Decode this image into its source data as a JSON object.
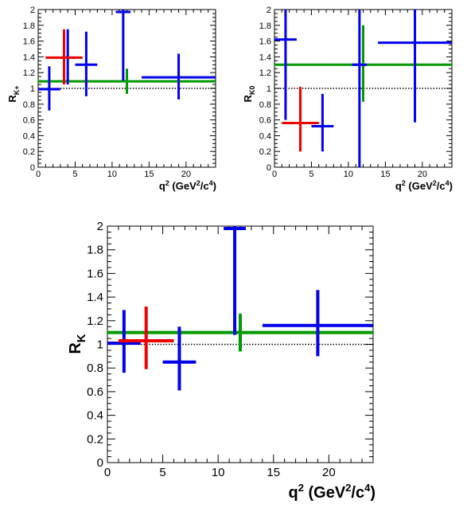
{
  "chart_data": [
    {
      "id": "rkplus",
      "type": "errorbar",
      "xlabel": "q² (GeV²/c⁴)",
      "xlabel_parts": {
        "q": "q",
        "q_sup": "2",
        "a": " (GeV",
        "a_sup": "2",
        "b": "/c",
        "b_sup": "4",
        "c": ")"
      },
      "ylabel_parts": {
        "main": "R",
        "sub": "K+"
      },
      "xlim": [
        0,
        24
      ],
      "ylim": [
        0,
        2
      ],
      "xticks": [
        0,
        5,
        10,
        15,
        20
      ],
      "yticks": [
        "0",
        "0.2",
        "0.4",
        "0.6",
        "0.8",
        "1",
        "1.2",
        "1.4",
        "1.6",
        "1.8",
        "2"
      ],
      "reference_line": {
        "y": 1.0,
        "style": "dotted"
      },
      "series": [
        {
          "color": "#0000ee",
          "points": [
            {
              "x": 1.5,
              "xerr": 1.5,
              "y": 0.99,
              "ylo": 0.72,
              "yhi": 1.28
            },
            {
              "x": 4.0,
              "xerr": 1.0,
              "y": 1.39,
              "ylo": 1.05,
              "yhi": 1.75
            },
            {
              "x": 6.5,
              "xerr": 1.5,
              "y": 1.3,
              "ylo": 0.9,
              "yhi": 1.72
            },
            {
              "x": 11.5,
              "xerr": 1.0,
              "y": 1.97,
              "ylo": 1.1,
              "yhi": 2.0
            },
            {
              "x": 19.0,
              "xerr": 5.0,
              "y": 1.14,
              "ylo": 0.86,
              "yhi": 1.44
            }
          ]
        },
        {
          "color": "#ee0000",
          "points": [
            {
              "x": 3.5,
              "xerr": 2.5,
              "y": 1.39,
              "ylo": 1.05,
              "yhi": 1.75
            }
          ]
        },
        {
          "color": "#009900",
          "points": [
            {
              "x": 12.0,
              "xerr": 12.0,
              "y": 1.09,
              "ylo": 0.93,
              "yhi": 1.25
            }
          ]
        }
      ]
    },
    {
      "id": "rk0",
      "type": "errorbar",
      "xlabel": "q² (GeV²/c⁴)",
      "xlabel_parts": {
        "q": "q",
        "q_sup": "2",
        "a": " (GeV",
        "a_sup": "2",
        "b": "/c",
        "b_sup": "4",
        "c": ")"
      },
      "ylabel_parts": {
        "main": "R",
        "sub": "K0"
      },
      "xlim": [
        0,
        24
      ],
      "ylim": [
        0,
        2
      ],
      "xticks": [
        0,
        5,
        10,
        15,
        20
      ],
      "yticks": [
        "0",
        "0.2",
        "0.4",
        "0.6",
        "0.8",
        "1",
        "1.2",
        "1.4",
        "1.6",
        "1.8",
        "2"
      ],
      "reference_line": {
        "y": 1.0,
        "style": "dotted"
      },
      "series": [
        {
          "color": "#0000ee",
          "points": [
            {
              "x": 1.5,
              "xerr": 1.5,
              "y": 1.62,
              "ylo": 0.6,
              "yhi": 2.0
            },
            {
              "x": 6.5,
              "xerr": 1.5,
              "y": 0.52,
              "ylo": 0.2,
              "yhi": 0.93
            },
            {
              "x": 11.5,
              "xerr": 1.0,
              "y": 1.3,
              "ylo": 0.0,
              "yhi": 2.0
            },
            {
              "x": 19.0,
              "xerr": 5.0,
              "y": 1.58,
              "ylo": 0.57,
              "yhi": 2.0
            }
          ]
        },
        {
          "color": "#ee0000",
          "points": [
            {
              "x": 3.5,
              "xerr": 2.5,
              "y": 0.56,
              "ylo": 0.2,
              "yhi": 1.02
            }
          ]
        },
        {
          "color": "#009900",
          "points": [
            {
              "x": 12.0,
              "xerr": 12.0,
              "y": 1.3,
              "ylo": 0.83,
              "yhi": 1.8
            }
          ]
        }
      ]
    },
    {
      "id": "rk",
      "type": "errorbar",
      "xlabel": "q² (GeV²/c⁴)",
      "xlabel_parts": {
        "q": "q",
        "q_sup": "2",
        "a": " (GeV",
        "a_sup": "2",
        "b": "/c",
        "b_sup": "4",
        "c": ")"
      },
      "ylabel_parts": {
        "main": "R",
        "sub": "K"
      },
      "xlim": [
        0,
        24
      ],
      "ylim": [
        0,
        2
      ],
      "xticks": [
        0,
        5,
        10,
        15,
        20
      ],
      "yticks": [
        "0",
        "0.2",
        "0.4",
        "0.6",
        "0.8",
        "1",
        "1.2",
        "1.4",
        "1.6",
        "1.8",
        "2"
      ],
      "reference_line": {
        "y": 1.0,
        "style": "dotted"
      },
      "series": [
        {
          "color": "#0000ee",
          "points": [
            {
              "x": 1.5,
              "xerr": 1.5,
              "y": 1.01,
              "ylo": 0.76,
              "yhi": 1.29
            },
            {
              "x": 6.5,
              "xerr": 1.5,
              "y": 0.85,
              "ylo": 0.61,
              "yhi": 1.15
            },
            {
              "x": 11.5,
              "xerr": 1.0,
              "y": 1.98,
              "ylo": 1.08,
              "yhi": 2.0
            },
            {
              "x": 19.0,
              "xerr": 5.0,
              "y": 1.16,
              "ylo": 0.9,
              "yhi": 1.46
            }
          ]
        },
        {
          "color": "#ee0000",
          "points": [
            {
              "x": 3.5,
              "xerr": 2.5,
              "y": 1.03,
              "ylo": 0.79,
              "yhi": 1.32
            }
          ]
        },
        {
          "color": "#009900",
          "points": [
            {
              "x": 12.0,
              "xerr": 12.0,
              "y": 1.1,
              "ylo": 0.94,
              "yhi": 1.26
            }
          ]
        }
      ]
    }
  ]
}
